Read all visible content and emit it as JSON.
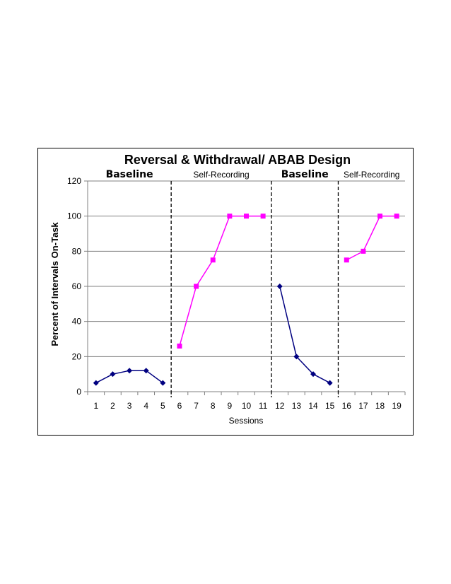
{
  "chart_data": {
    "type": "line",
    "title": "Reversal & Withdrawal/ ABAB Design",
    "xlabel": "Sessions",
    "ylabel": "Percent of Intervals On-Task",
    "ylim": [
      0,
      120
    ],
    "yticks": [
      0,
      20,
      40,
      60,
      80,
      100,
      120
    ],
    "categories": [
      "1",
      "2",
      "3",
      "4",
      "5",
      "6",
      "7",
      "8",
      "9",
      "10",
      "11",
      "12",
      "13",
      "14",
      "15",
      "16",
      "17",
      "18",
      "19"
    ],
    "grid": true,
    "legend": "none",
    "phases": [
      {
        "label": "Baseline",
        "start": 1,
        "end": 5
      },
      {
        "label": "Self-Recording",
        "start": 6,
        "end": 11
      },
      {
        "label": "Baseline",
        "start": 12,
        "end": 15
      },
      {
        "label": "Self-Recording",
        "start": 16,
        "end": 19
      }
    ],
    "phase_change_after": [
      5,
      11,
      15
    ],
    "series": [
      {
        "x": [
          1,
          2,
          3,
          4,
          5
        ],
        "values": [
          5,
          10,
          12,
          12,
          5
        ],
        "color": "#000080",
        "marker": "diamond"
      },
      {
        "x": [
          6,
          7,
          8,
          9,
          10,
          11
        ],
        "values": [
          26,
          60,
          75,
          100,
          100,
          100
        ],
        "color": "#ff00ff",
        "marker": "square"
      },
      {
        "x": [
          12,
          13,
          14,
          15
        ],
        "values": [
          60,
          20,
          10,
          5
        ],
        "color": "#000080",
        "marker": "diamond"
      },
      {
        "x": [
          16,
          17,
          18,
          19
        ],
        "values": [
          75,
          80,
          100,
          100
        ],
        "color": "#ff00ff",
        "marker": "square"
      }
    ]
  }
}
